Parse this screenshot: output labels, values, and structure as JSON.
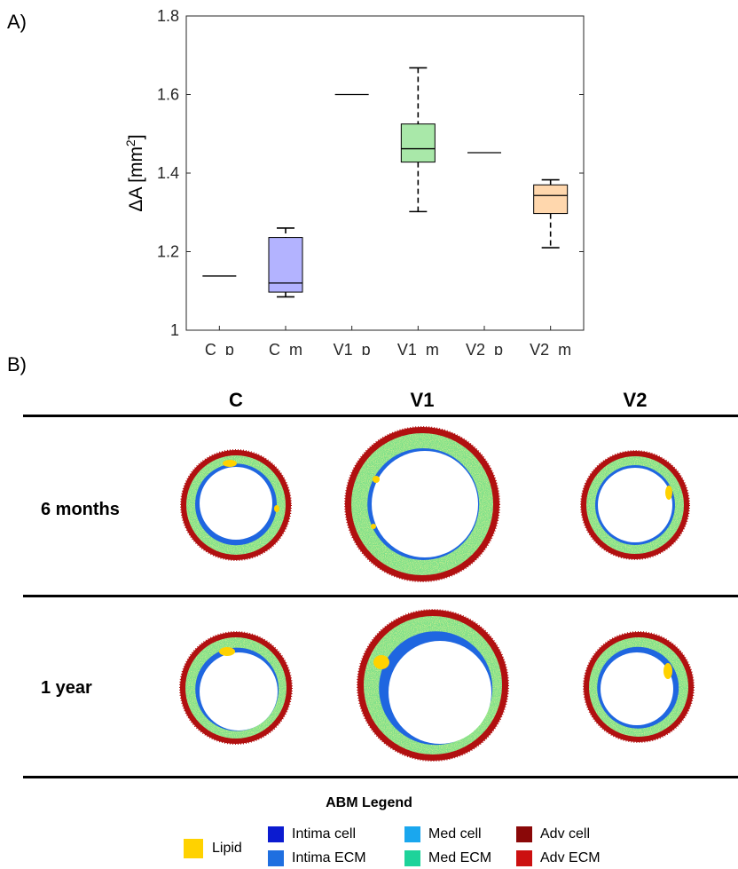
{
  "panel_labels": {
    "a": "A)",
    "b": "B)"
  },
  "chart_data": {
    "type": "box",
    "ylabel": "ΔA [mm²]",
    "ylabel_parts": {
      "base": "ΔA [mm",
      "sup": "2",
      "end": "]"
    },
    "ylim": [
      1,
      1.8
    ],
    "yticks": [
      1,
      1.2,
      1.4,
      1.6,
      1.8
    ],
    "ytick_labels": [
      "1",
      "1.2",
      "1.4",
      "1.6",
      "1.8"
    ],
    "grid": false,
    "categories": [
      "C_p",
      "C_m",
      "V1_p",
      "V1_m",
      "V2_p",
      "V2_m"
    ],
    "boxes": [
      {
        "category": "C_p",
        "min": 1.138,
        "q1": 1.138,
        "median": 1.138,
        "q3": 1.138,
        "max": 1.138,
        "color": null
      },
      {
        "category": "C_m",
        "min": 1.085,
        "q1": 1.097,
        "median": 1.12,
        "q3": 1.236,
        "max": 1.26,
        "color": "#b3b3ff"
      },
      {
        "category": "V1_p",
        "min": 1.6,
        "q1": 1.6,
        "median": 1.6,
        "q3": 1.6,
        "max": 1.6,
        "color": null
      },
      {
        "category": "V1_m",
        "min": 1.302,
        "q1": 1.428,
        "median": 1.462,
        "q3": 1.525,
        "max": 1.668,
        "color": "#a9e8a9"
      },
      {
        "category": "V2_p",
        "min": 1.452,
        "q1": 1.452,
        "median": 1.452,
        "q3": 1.452,
        "max": 1.452,
        "color": null
      },
      {
        "category": "V2_m",
        "min": 1.21,
        "q1": 1.297,
        "median": 1.343,
        "q3": 1.37,
        "max": 1.383,
        "color": "#ffd7ad"
      }
    ]
  },
  "grid": {
    "columns": [
      "C",
      "V1",
      "V2"
    ],
    "rows": [
      "6 months",
      "1 year"
    ]
  },
  "legend": {
    "title": "ABM Legend",
    "items": [
      {
        "label": "Lipid",
        "color": "#ffd200"
      },
      {
        "label": "Intima cell",
        "color": "#0b1bd0"
      },
      {
        "label": "Intima ECM",
        "color": "#1f6fe0"
      },
      {
        "label": "Med cell",
        "color": "#1aa7ee"
      },
      {
        "label": "Med ECM",
        "color": "#1ed39a"
      },
      {
        "label": "Adv cell",
        "color": "#8a0808"
      },
      {
        "label": "Adv ECM",
        "color": "#cc1010"
      }
    ]
  },
  "colors": {
    "media": "#7ee08a",
    "media_speckle": "#c7e84a",
    "intima": "#1f66e0",
    "adventitia": "#b11010",
    "lipid": "#ffd200"
  }
}
